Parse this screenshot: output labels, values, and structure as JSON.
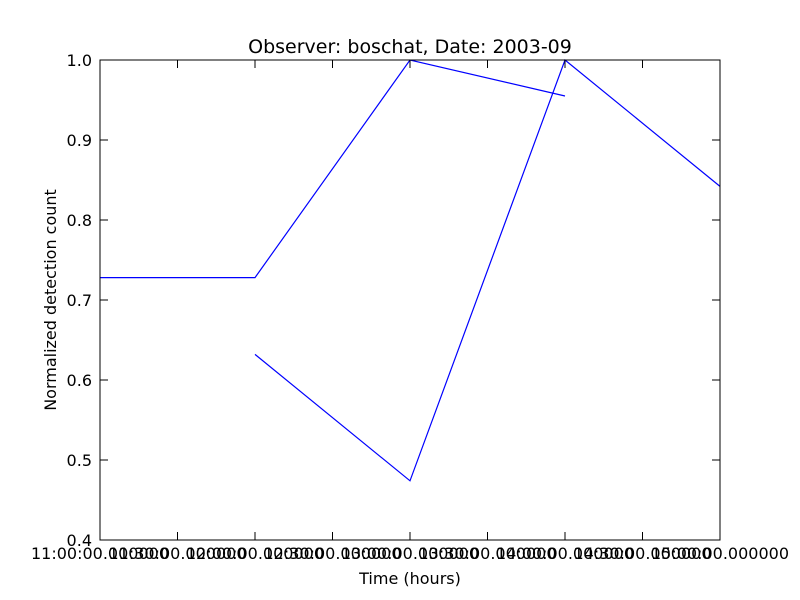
{
  "chart_data": {
    "type": "line",
    "title": "Observer: boschat, Date: 2003-09",
    "xlabel": "Time (hours)",
    "ylabel": "Normalized detection count",
    "xlim": [
      "11:00:00",
      "15:00:00"
    ],
    "ylim": [
      0.4,
      1.0
    ],
    "grid": false,
    "x_ticks": [
      "11:00:00",
      "11:30:00",
      "12:00:00",
      "12:30:00",
      "13:00:00",
      "13:30:00",
      "14:00:00",
      "14:30:00",
      "15:00:00"
    ],
    "x_tick_labels": [
      "11:00:00.000000",
      "11:30:00.000000",
      "12:00:00.000000",
      "12:30:00.000000",
      "13:00:00.000000",
      "13:30:00.000000",
      "14:00:00.000000",
      "14:30:00.000000",
      "15:00:00.000000"
    ],
    "y_ticks": [
      0.4,
      0.5,
      0.6,
      0.7,
      0.8,
      0.9,
      1.0
    ],
    "y_tick_labels": [
      "0.4",
      "0.5",
      "0.6",
      "0.7",
      "0.8",
      "0.9",
      "1.0"
    ],
    "line_color": "#0000ff",
    "series": [
      {
        "x": [
          "11:00:00",
          "12:00:00",
          "13:00:00",
          "14:00:00"
        ],
        "y": [
          0.728,
          0.728,
          1.0,
          0.955
        ]
      },
      {
        "x": [
          "12:00:00",
          "13:00:00",
          "14:00:00",
          "15:00:00"
        ],
        "y": [
          0.632,
          0.474,
          1.0,
          0.842
        ]
      }
    ]
  }
}
